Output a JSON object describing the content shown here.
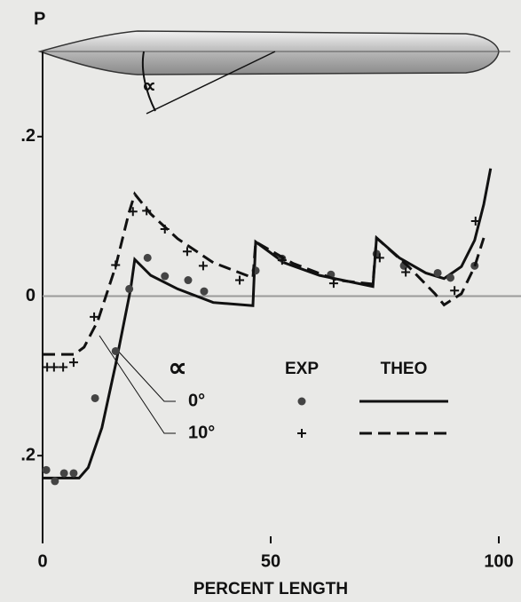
{
  "chart_data": {
    "type": "line",
    "ylabel": "P",
    "xlabel": "PERCENT LENGTH",
    "diagram_label": "∝",
    "legend_title": "∝",
    "legend_headers": [
      "EXP",
      "THEO"
    ],
    "xlim": [
      0,
      100
    ],
    "xticks": [
      0,
      50,
      100
    ],
    "ylim": [
      -0.31,
      0.31
    ],
    "yticks": [
      {
        "value": -0.2,
        "label": ".2"
      },
      0,
      {
        "value": 0.2,
        "label": ".2"
      }
    ],
    "grid": false,
    "series": [
      {
        "name": "0°",
        "color": "#111111",
        "marker": "circle",
        "dash": "solid",
        "exp_x": [
          0.8,
          2.7,
          4.7,
          6.8,
          11.5,
          16,
          19,
          23,
          26.8,
          31.9,
          35.4,
          46.7,
          52.5,
          63.2,
          73.2,
          79.2,
          86.6,
          89.4,
          94.7
        ],
        "exp_values": [
          -0.218,
          -0.232,
          -0.222,
          -0.222,
          -0.128,
          -0.069,
          0.009,
          0.048,
          0.025,
          0.02,
          0.006,
          0.032,
          0.047,
          0.027,
          0.053,
          0.038,
          0.029,
          0.023,
          0.038
        ],
        "theo_x": [
          0,
          8,
          10,
          13,
          16,
          19.3,
          20.2,
          23.7,
          29.6,
          37.4,
          46.1,
          46.7,
          52.9,
          60.7,
          72.4,
          72.4,
          73.2,
          78.2,
          84,
          88,
          91.8,
          94.7,
          96.7,
          98.2
        ],
        "theo_values": [
          -0.228,
          -0.228,
          -0.215,
          -0.165,
          -0.086,
          0.009,
          0.046,
          0.026,
          0.009,
          -0.008,
          -0.012,
          0.068,
          0.042,
          0.026,
          0.012,
          0.012,
          0.073,
          0.048,
          0.029,
          0.022,
          0.037,
          0.07,
          0.115,
          0.16
        ]
      },
      {
        "name": "10°",
        "color": "#111111",
        "marker": "plus",
        "dash": "dashed",
        "exp_x": [
          1,
          2.5,
          4.5,
          6.8,
          11.3,
          16,
          19.8,
          22.8,
          26.8,
          31.7,
          35.2,
          43.2,
          52.5,
          63.8,
          73.9,
          79.6,
          90.3,
          94.9
        ],
        "exp_values": [
          -0.089,
          -0.089,
          -0.089,
          -0.083,
          -0.026,
          0.039,
          0.106,
          0.107,
          0.084,
          0.056,
          0.038,
          0.02,
          0.045,
          0.016,
          0.048,
          0.03,
          0.007,
          0.094
        ],
        "theo_x": [
          0,
          7,
          9.1,
          12.1,
          16,
          18.9,
          20.2,
          23.7,
          29.6,
          37.4,
          46.1,
          46.7,
          54.9,
          64.6,
          72.4,
          72.4,
          73.2,
          80.2,
          86,
          88,
          91.8,
          94.7,
          96.7
        ],
        "theo_values": [
          -0.073,
          -0.073,
          -0.064,
          -0.031,
          0.037,
          0.104,
          0.128,
          0.103,
          0.072,
          0.042,
          0.023,
          0.068,
          0.041,
          0.02,
          0.015,
          0.015,
          0.073,
          0.037,
          0.003,
          -0.011,
          0.003,
          0.037,
          0.073
        ]
      }
    ]
  }
}
